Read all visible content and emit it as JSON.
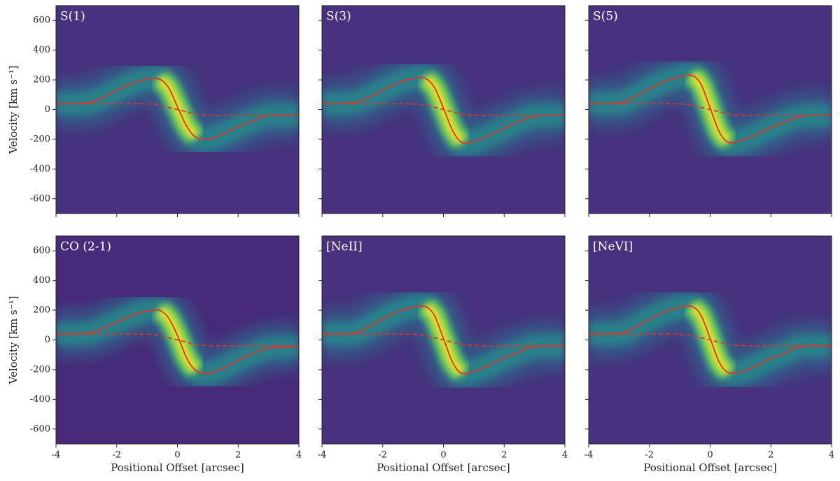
{
  "chart_data": [
    {
      "type": "line",
      "title": "S(1)",
      "background": "#46327e",
      "x": [
        -4,
        -3,
        -2.5,
        -2,
        -1.5,
        -1,
        -0.6,
        -0.3,
        0,
        0.3,
        0.6,
        1,
        1.5,
        2,
        2.5,
        3,
        4
      ],
      "series": [
        {
          "color": "#e03426",
          "style": "solid",
          "values": [
            40,
            45,
            80,
            130,
            175,
            205,
            205,
            150,
            20,
            -110,
            -185,
            -200,
            -165,
            -115,
            -75,
            -40,
            -40
          ]
        },
        {
          "color": "#e03426",
          "style": "dashed",
          "values": [
            40,
            40,
            40,
            40,
            40,
            38,
            30,
            15,
            0,
            -15,
            -30,
            -38,
            -40,
            -40,
            -40,
            -40,
            -40
          ]
        }
      ],
      "xlim": [
        -4,
        4
      ],
      "ylim": [
        -700,
        700
      ],
      "xticks": [
        -4,
        -2,
        0,
        2,
        4
      ],
      "yticks": [
        -600,
        -400,
        -200,
        0,
        200,
        400,
        600
      ],
      "ylabel": "Velocity [km s⁻¹]",
      "show_xticklabels": false,
      "show_yticklabels": true
    },
    {
      "type": "line",
      "title": "S(3)",
      "background": "#46327e",
      "x": [
        -4,
        -3,
        -2.5,
        -2,
        -1.5,
        -1,
        -0.6,
        -0.3,
        0,
        0.3,
        0.6,
        1,
        1.5,
        2,
        2.5,
        3,
        4
      ],
      "series": [
        {
          "color": "#e03426",
          "style": "solid",
          "values": [
            40,
            45,
            80,
            130,
            180,
            210,
            210,
            150,
            10,
            -140,
            -220,
            -215,
            -175,
            -125,
            -80,
            -45,
            -40
          ]
        },
        {
          "color": "#e03426",
          "style": "dashed",
          "values": [
            40,
            40,
            40,
            40,
            40,
            38,
            30,
            15,
            0,
            -15,
            -30,
            -38,
            -40,
            -40,
            -40,
            -40,
            -40
          ]
        }
      ],
      "xlim": [
        -4,
        4
      ],
      "ylim": [
        -700,
        700
      ],
      "xticks": [
        -4,
        -2,
        0,
        2,
        4
      ],
      "yticks": [
        -600,
        -400,
        -200,
        0,
        200,
        400,
        600
      ],
      "show_xticklabels": false,
      "show_yticklabels": false
    },
    {
      "type": "line",
      "title": "S(5)",
      "background": "#46327e",
      "x": [
        -4,
        -3,
        -2.5,
        -2,
        -1.5,
        -1,
        -0.6,
        -0.3,
        0,
        0.3,
        0.6,
        1,
        1.5,
        2,
        2.5,
        3,
        4
      ],
      "series": [
        {
          "color": "#e03426",
          "style": "solid",
          "values": [
            40,
            45,
            85,
            140,
            190,
            220,
            230,
            170,
            10,
            -150,
            -220,
            -210,
            -170,
            -120,
            -80,
            -45,
            -40
          ]
        },
        {
          "color": "#e03426",
          "style": "dashed",
          "values": [
            40,
            40,
            40,
            40,
            40,
            38,
            30,
            15,
            0,
            -15,
            -30,
            -38,
            -40,
            -40,
            -40,
            -40,
            -40
          ]
        }
      ],
      "xlim": [
        -4,
        4
      ],
      "ylim": [
        -700,
        700
      ],
      "xticks": [
        -4,
        -2,
        0,
        2,
        4
      ],
      "yticks": [
        -600,
        -400,
        -200,
        0,
        200,
        400,
        600
      ],
      "show_xticklabels": false,
      "show_yticklabels": false
    },
    {
      "type": "line",
      "title": "CO (2-1)",
      "background": "#472a7a",
      "x": [
        -4,
        -3,
        -2.5,
        -2,
        -1.5,
        -1,
        -0.6,
        -0.3,
        0,
        0.3,
        0.6,
        1,
        1.5,
        2,
        2.5,
        3,
        4
      ],
      "series": [
        {
          "color": "#e03426",
          "style": "solid",
          "values": [
            40,
            45,
            75,
            120,
            165,
            195,
            200,
            150,
            30,
            -120,
            -205,
            -225,
            -190,
            -135,
            -90,
            -55,
            -45
          ]
        },
        {
          "color": "#e03426",
          "style": "dashed",
          "values": [
            40,
            40,
            40,
            40,
            40,
            38,
            30,
            15,
            0,
            -15,
            -30,
            -38,
            -40,
            -40,
            -40,
            -40,
            -40
          ]
        }
      ],
      "xlim": [
        -4,
        4
      ],
      "ylim": [
        -700,
        700
      ],
      "xticks": [
        -4,
        -2,
        0,
        2,
        4
      ],
      "yticks": [
        -600,
        -400,
        -200,
        0,
        200,
        400,
        600
      ],
      "xlabel": "Positional Offset [arcsec]",
      "ylabel": "Velocity [km s⁻¹]",
      "show_xticklabels": true,
      "show_yticklabels": true
    },
    {
      "type": "line",
      "title": "[NeII]",
      "background": "#46327e",
      "x": [
        -4,
        -3,
        -2.5,
        -2,
        -1.5,
        -1,
        -0.6,
        -0.3,
        0,
        0.3,
        0.6,
        1,
        1.5,
        2,
        2.5,
        3,
        4
      ],
      "series": [
        {
          "color": "#e03426",
          "style": "solid",
          "values": [
            40,
            45,
            85,
            140,
            190,
            220,
            225,
            165,
            10,
            -150,
            -225,
            -210,
            -170,
            -120,
            -80,
            -45,
            -40
          ]
        },
        {
          "color": "#e03426",
          "style": "dashed",
          "values": [
            40,
            40,
            40,
            40,
            40,
            38,
            30,
            15,
            0,
            -15,
            -30,
            -38,
            -40,
            -40,
            -40,
            -40,
            -40
          ]
        }
      ],
      "xlim": [
        -4,
        4
      ],
      "ylim": [
        -700,
        700
      ],
      "xticks": [
        -4,
        -2,
        0,
        2,
        4
      ],
      "yticks": [
        -600,
        -400,
        -200,
        0,
        200,
        400,
        600
      ],
      "xlabel": "Positional Offset [arcsec]",
      "show_xticklabels": true,
      "show_yticklabels": false
    },
    {
      "type": "line",
      "title": "[NeVI]",
      "background": "#46327e",
      "x": [
        -4,
        -3,
        -2.5,
        -2,
        -1.5,
        -1,
        -0.6,
        -0.3,
        0,
        0.3,
        0.6,
        1,
        1.5,
        2,
        2.5,
        3,
        4
      ],
      "series": [
        {
          "color": "#e03426",
          "style": "solid",
          "values": [
            40,
            45,
            85,
            140,
            190,
            220,
            225,
            165,
            10,
            -150,
            -220,
            -215,
            -175,
            -125,
            -85,
            -45,
            -40
          ]
        },
        {
          "color": "#e03426",
          "style": "dashed",
          "values": [
            40,
            40,
            40,
            40,
            40,
            38,
            30,
            15,
            0,
            -15,
            -30,
            -38,
            -40,
            -40,
            -40,
            -40,
            -40
          ]
        }
      ],
      "xlim": [
        -4,
        4
      ],
      "ylim": [
        -700,
        700
      ],
      "xticks": [
        -4,
        -2,
        0,
        2,
        4
      ],
      "yticks": [
        -600,
        -400,
        -200,
        0,
        200,
        400,
        600
      ],
      "xlabel": "Positional Offset [arcsec]",
      "show_xticklabels": true,
      "show_yticklabels": false
    }
  ]
}
